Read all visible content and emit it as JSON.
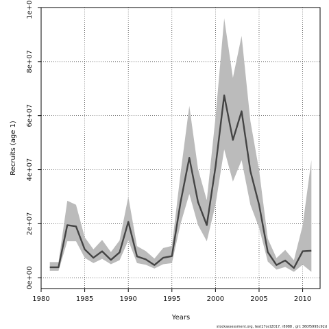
{
  "chart_data": {
    "type": "line",
    "title": "",
    "xlabel": "Years",
    "ylabel": "Recruits (age 1)",
    "xlim": [
      1980,
      2012
    ],
    "ylim": [
      -4000000,
      100000000
    ],
    "x_ticks": [
      1980,
      1985,
      1990,
      1995,
      2000,
      2005,
      2010
    ],
    "x_tick_labels": [
      "1980",
      "1985",
      "1990",
      "1995",
      "2000",
      "2005",
      "2010"
    ],
    "y_ticks": [
      0,
      20000000,
      40000000,
      60000000,
      80000000,
      100000000
    ],
    "y_tick_labels": [
      "0e+00",
      "2e+07",
      "4e+07",
      "6e+07",
      "8e+07",
      "1e+08"
    ],
    "grid": true,
    "grid_style": "dotted",
    "colors": {
      "line": "#444444",
      "band": "#bbbbbb",
      "axis": "#000000",
      "grid": "#333333"
    },
    "x": [
      1981,
      1982,
      1983,
      1984,
      1985,
      1986,
      1987,
      1988,
      1989,
      1990,
      1991,
      1992,
      1993,
      1994,
      1995,
      1996,
      1997,
      1998,
      1999,
      2000,
      2001,
      2002,
      2003,
      2004,
      2005,
      2006,
      2007,
      2008,
      2009,
      2010,
      2011
    ],
    "series": [
      {
        "values": [
          3900000,
          3900000,
          19500000,
          19000000,
          10500000,
          7400000,
          9800000,
          6600000,
          9400000,
          20700000,
          7900000,
          6800000,
          4700000,
          7400000,
          8000000,
          28000000,
          44400000,
          28000000,
          19500000,
          41000000,
          67500000,
          51000000,
          61600000,
          39500000,
          27000000,
          9500000,
          4700000,
          6400000,
          3600000,
          9800000,
          10000000
        ],
        "lower": [
          2600000,
          2600000,
          13500000,
          13500000,
          7400000,
          5400000,
          7000000,
          5000000,
          6500000,
          13800000,
          5400000,
          4800000,
          3400000,
          5000000,
          5400000,
          20000000,
          31000000,
          19500000,
          13500000,
          27000000,
          47500000,
          35600000,
          43500000,
          27000000,
          18500000,
          6000000,
          3000000,
          4000000,
          2200000,
          4800000,
          2200000
        ],
        "upper": [
          5800000,
          5800000,
          28500000,
          27000000,
          15000000,
          10500000,
          14000000,
          9500000,
          13800000,
          30000000,
          11700000,
          9900000,
          7100000,
          11000000,
          11800000,
          38800000,
          63600000,
          40300000,
          28700000,
          59300000,
          96000000,
          74000000,
          89500000,
          58000000,
          39800000,
          14500000,
          7300000,
          10300000,
          6500000,
          19400000,
          43500000
        ]
      }
    ]
  },
  "footnote": "stockassessment.org, test17oct2017, r8988 , git: 360f5995c92d"
}
